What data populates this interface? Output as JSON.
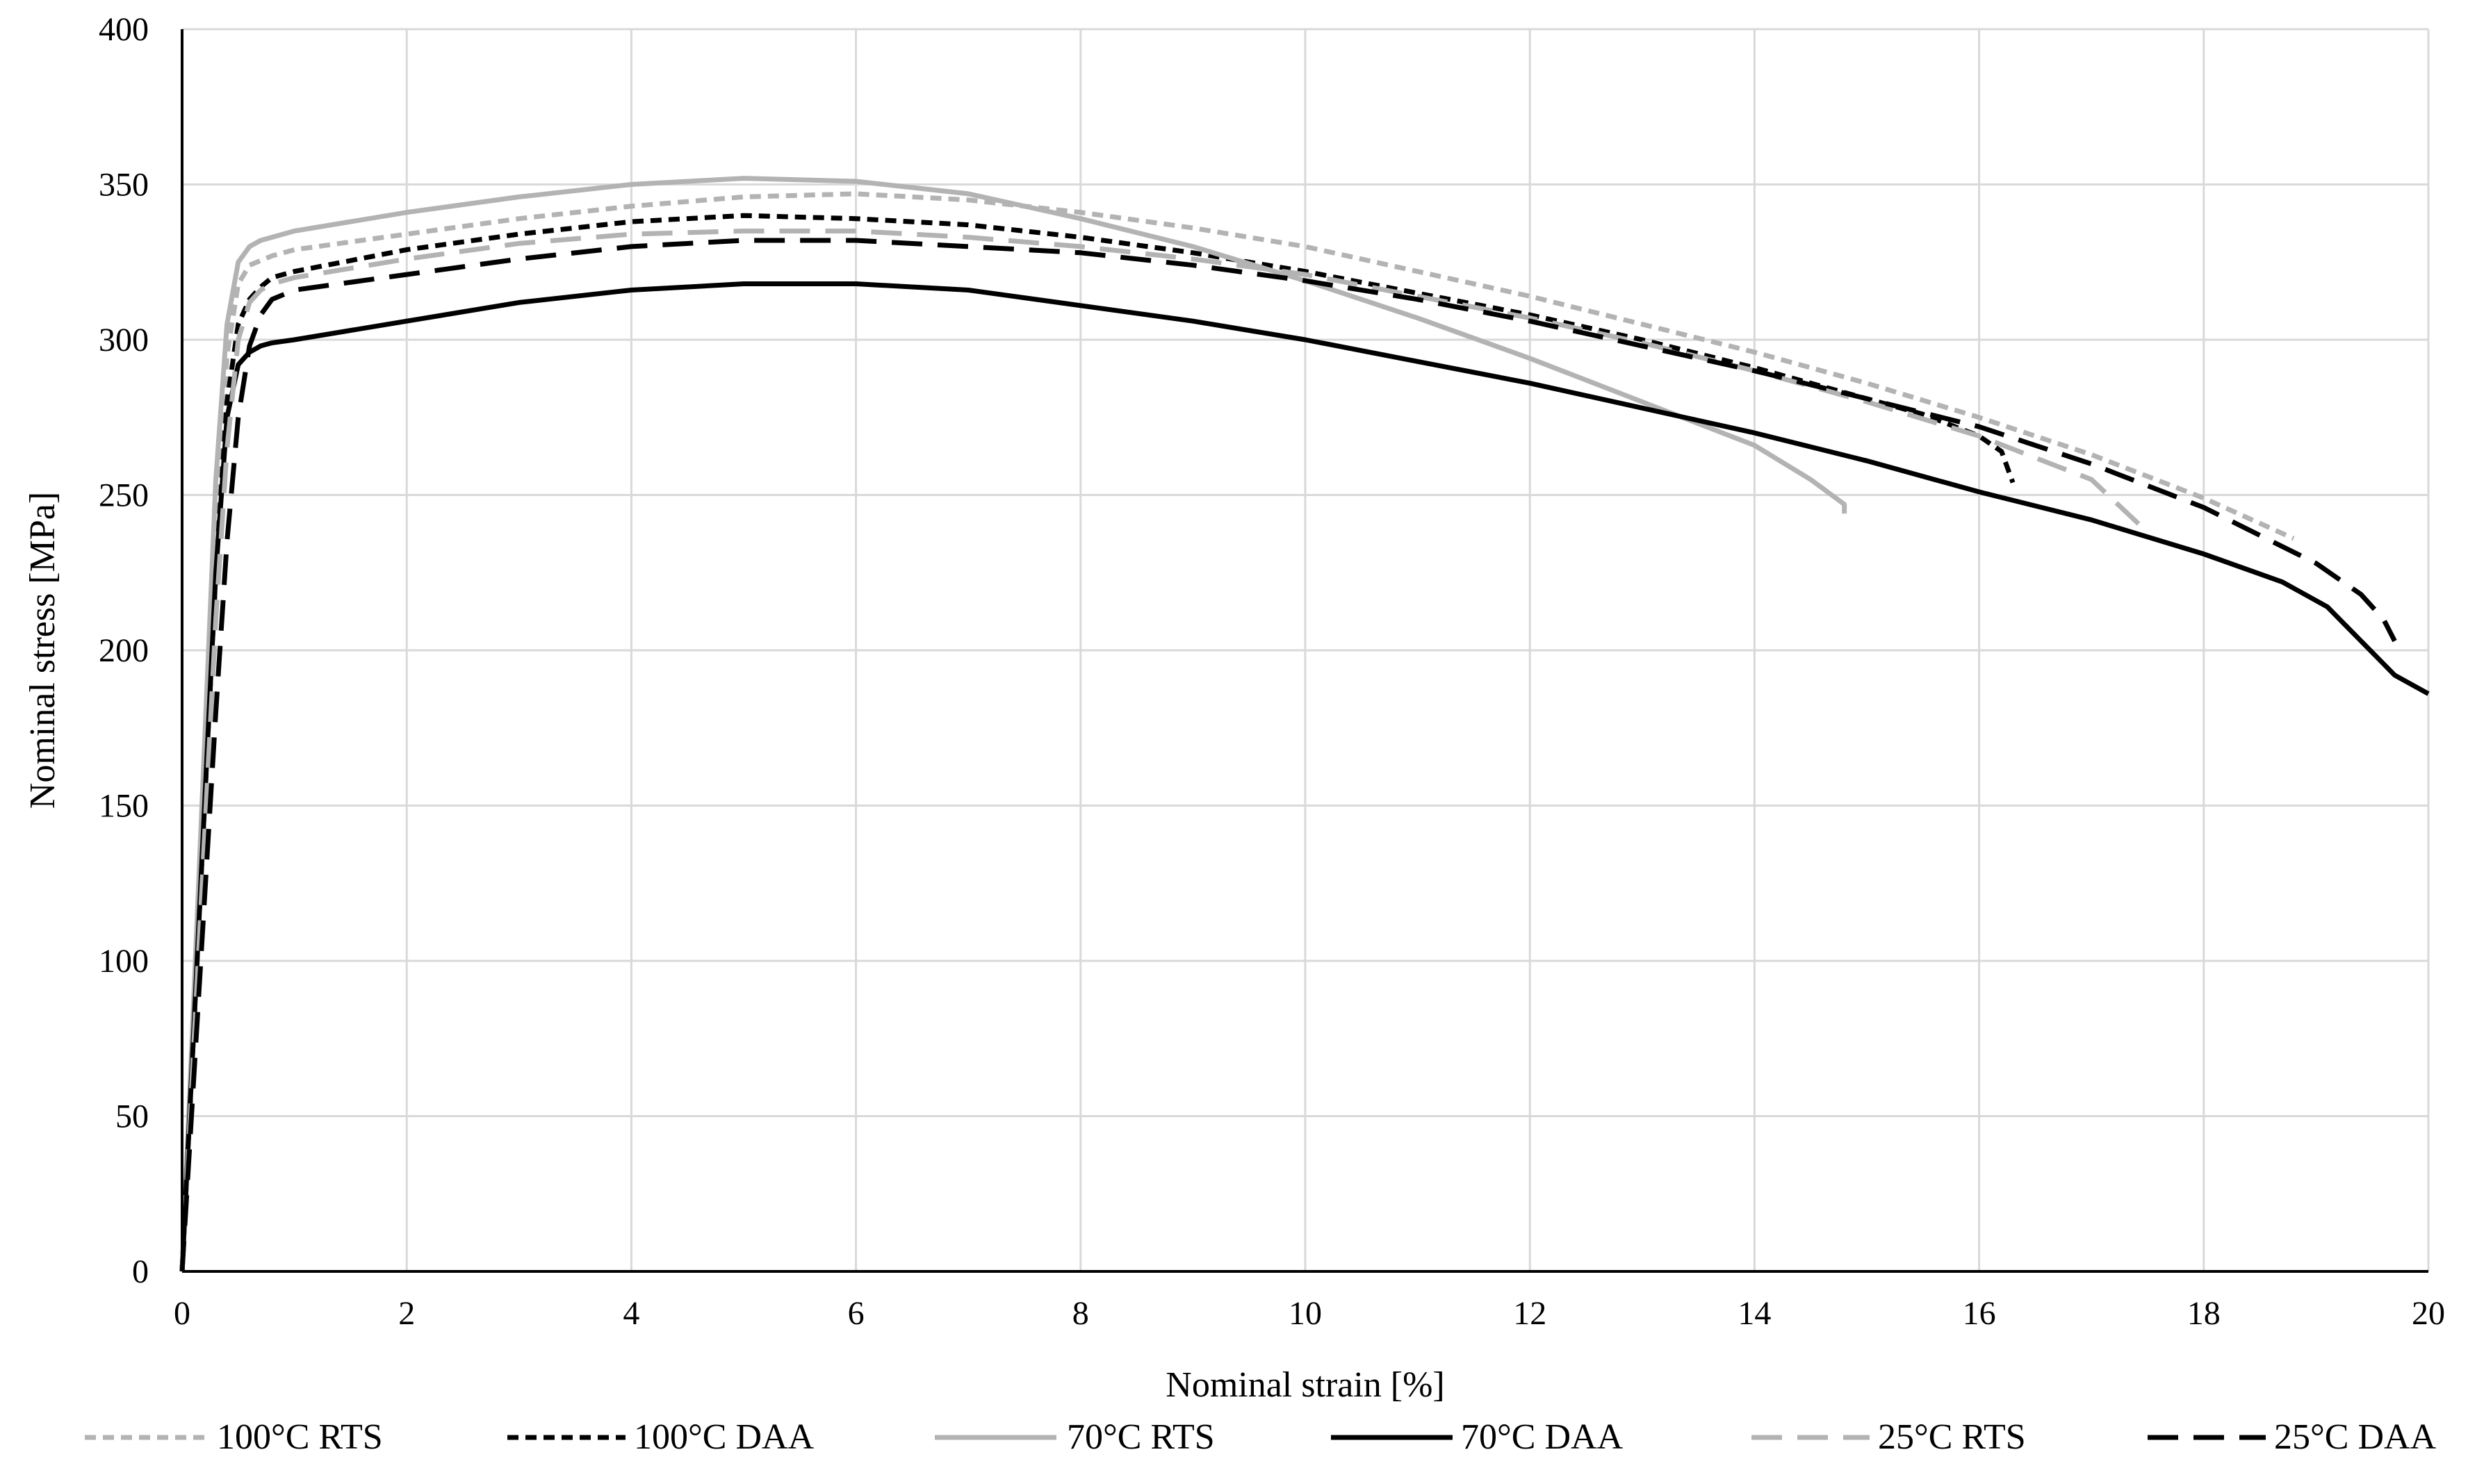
{
  "chart_data": {
    "type": "line",
    "title": "",
    "xlabel": "Nominal strain [%]",
    "ylabel": "Nominal stress [MPa]",
    "xlim": [
      0,
      20
    ],
    "ylim": [
      0,
      400
    ],
    "xticks": [
      0,
      2,
      4,
      6,
      8,
      10,
      12,
      14,
      16,
      18,
      20
    ],
    "yticks": [
      0,
      50,
      100,
      150,
      200,
      250,
      300,
      350,
      400
    ],
    "grid": true,
    "legend_position": "bottom",
    "series": [
      {
        "name": "100°C RTS",
        "color": "#b3b3b3",
        "dash": "short-dash",
        "x": [
          0,
          0.1,
          0.2,
          0.3,
          0.4,
          0.5,
          0.6,
          0.8,
          1.0,
          2,
          3,
          4,
          5,
          6,
          7,
          8,
          9,
          10,
          11,
          12,
          13,
          14,
          15,
          16,
          17,
          18,
          18.8
        ],
        "y": [
          0,
          80,
          160,
          240,
          295,
          318,
          324,
          327,
          329,
          334,
          339,
          343,
          346,
          347,
          345,
          341,
          336,
          330,
          322,
          314,
          305,
          296,
          286,
          275,
          263,
          249,
          236
        ]
      },
      {
        "name": "100°C DAA",
        "color": "#000000",
        "dash": "short-dash",
        "x": [
          0,
          0.1,
          0.2,
          0.3,
          0.4,
          0.5,
          0.6,
          0.7,
          0.8,
          1.0,
          2,
          3,
          4,
          5,
          6,
          7,
          8,
          9,
          10,
          11,
          12,
          13,
          14,
          15,
          15.5,
          16.0,
          16.2,
          16.3
        ],
        "y": [
          0,
          75,
          150,
          225,
          280,
          305,
          313,
          317,
          320,
          322,
          329,
          334,
          338,
          340,
          339,
          337,
          333,
          328,
          322,
          315,
          308,
          300,
          291,
          281,
          276,
          269,
          264,
          254
        ]
      },
      {
        "name": "70°C RTS",
        "color": "#b3b3b3",
        "dash": "solid",
        "x": [
          0,
          0.1,
          0.2,
          0.3,
          0.4,
          0.5,
          0.6,
          0.7,
          0.8,
          1.0,
          2,
          3,
          4,
          5,
          6,
          7,
          8,
          9,
          10,
          11,
          12,
          13,
          14,
          14.5,
          14.8,
          14.8
        ],
        "y": [
          0,
          85,
          170,
          255,
          305,
          325,
          330,
          332,
          333,
          335,
          341,
          346,
          350,
          352,
          351,
          347,
          339,
          330,
          319,
          307,
          294,
          280,
          266,
          255,
          247,
          244
        ]
      },
      {
        "name": "70°C DAA",
        "color": "#000000",
        "dash": "solid",
        "x": [
          0,
          0.1,
          0.2,
          0.3,
          0.4,
          0.5,
          0.6,
          0.7,
          0.8,
          1.0,
          2,
          3,
          4,
          5,
          6,
          7,
          8,
          9,
          10,
          11,
          12,
          13,
          14,
          15,
          16,
          17,
          18,
          18.7,
          19.1,
          19.4,
          19.7,
          20
        ],
        "y": [
          0,
          75,
          150,
          225,
          275,
          292,
          296,
          298,
          299,
          300,
          306,
          312,
          316,
          318,
          318,
          316,
          311,
          306,
          300,
          293,
          286,
          278,
          270,
          261,
          251,
          242,
          231,
          222,
          214,
          203,
          192,
          186
        ]
      },
      {
        "name": "25°C RTS",
        "color": "#b3b3b3",
        "dash": "long-dash",
        "x": [
          0,
          0.1,
          0.2,
          0.3,
          0.4,
          0.5,
          0.6,
          0.7,
          0.8,
          1.0,
          2,
          3,
          4,
          5,
          6,
          7,
          8,
          9,
          10,
          11,
          12,
          13,
          14,
          15,
          16,
          17,
          17.5
        ],
        "y": [
          0,
          70,
          140,
          210,
          265,
          300,
          312,
          316,
          318,
          320,
          326,
          331,
          334,
          335,
          335,
          333,
          330,
          326,
          321,
          314,
          307,
          299,
          290,
          280,
          269,
          255,
          238
        ]
      },
      {
        "name": "25°C DAA",
        "color": "#000000",
        "dash": "long-dash",
        "x": [
          0,
          0.1,
          0.2,
          0.3,
          0.4,
          0.5,
          0.6,
          0.7,
          0.8,
          1.0,
          2,
          3,
          4,
          5,
          6,
          7,
          8,
          9,
          10,
          11,
          12,
          13,
          14,
          15,
          16,
          17,
          18,
          19,
          19.4,
          19.6,
          19.7
        ],
        "y": [
          0,
          60,
          120,
          180,
          235,
          275,
          298,
          308,
          313,
          316,
          321,
          326,
          330,
          332,
          332,
          330,
          328,
          324,
          319,
          313,
          306,
          298,
          290,
          281,
          272,
          260,
          246,
          228,
          218,
          210,
          203
        ]
      }
    ]
  }
}
